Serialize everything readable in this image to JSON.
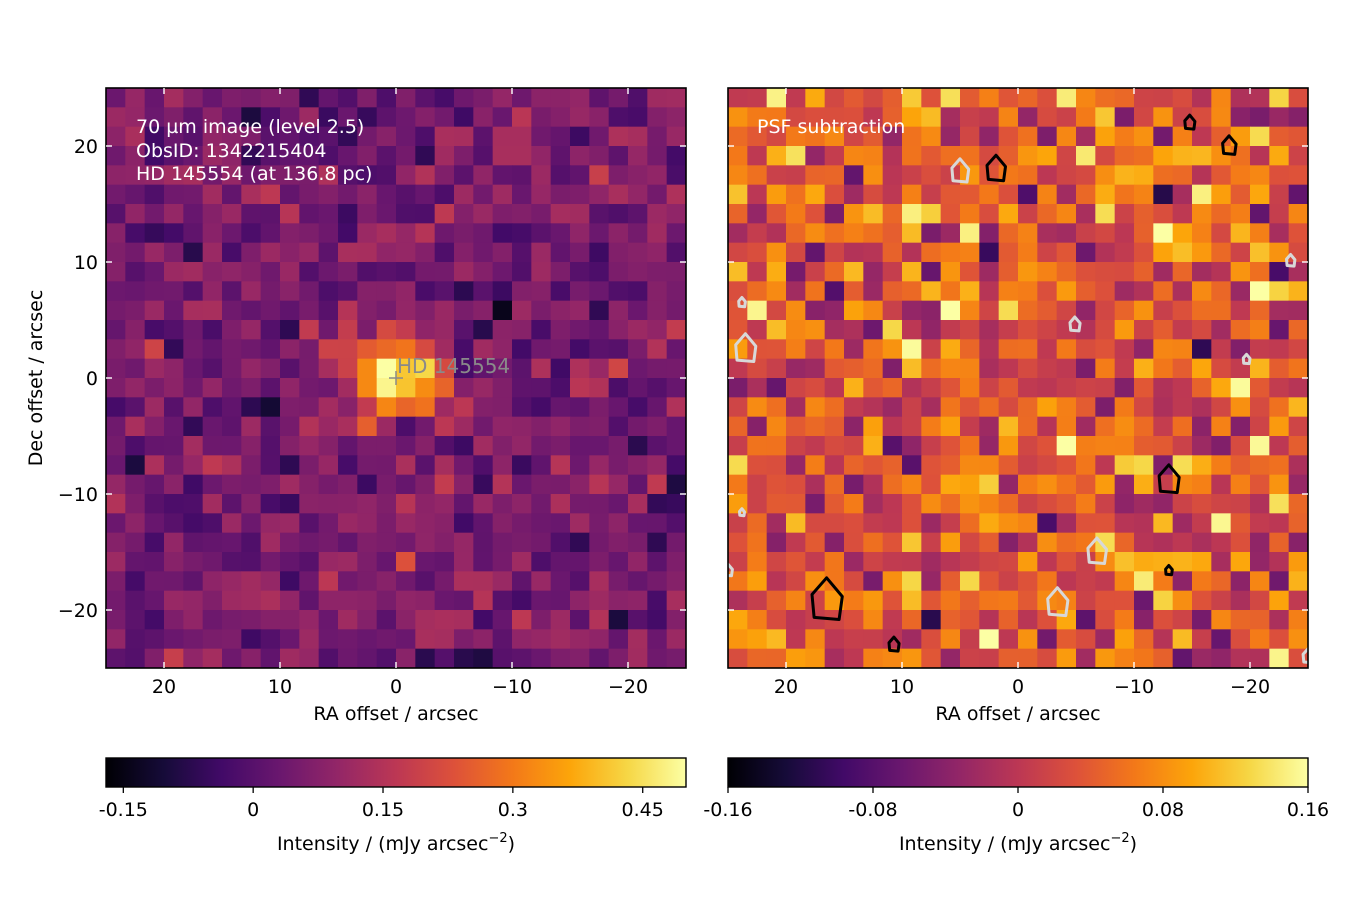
{
  "colors": {
    "colormap": "inferno",
    "overlay_text": "#ffffff",
    "target_label": "#8a8a8a",
    "contour_positive": "#000000",
    "contour_negative": "#d8d8d8"
  },
  "chart_data": [
    {
      "type": "heatmap",
      "panel": "left",
      "annotation_lines": [
        "70 µm image (level 2.5)",
        "ObsID: 1342215404",
        "HD 145554 (at 136.8 pc)"
      ],
      "marker_label": "HD 145554",
      "marker": {
        "ra": 0,
        "dec": 0
      },
      "xlabel": "RA offset / arcsec",
      "ylabel": "Dec offset / arcsec",
      "xlim": [
        25,
        -25
      ],
      "ylim": [
        -25,
        25
      ],
      "xticks": [
        20,
        10,
        0,
        -10,
        -20
      ],
      "xtick_labels": [
        "20",
        "10",
        "0",
        "−10",
        "−20"
      ],
      "yticks": [
        20,
        10,
        0,
        -10,
        -20
      ],
      "ytick_labels": [
        "20",
        "10",
        "0",
        "−10",
        "−20"
      ],
      "grid": [
        30,
        30
      ],
      "value_range": [
        -0.17,
        0.5
      ],
      "peak": {
        "ra": 0,
        "dec": 0,
        "value": 0.5
      },
      "colorbar": {
        "label_main": "Intensity / (mJy arcsec",
        "label_sup": "−2",
        "label_tail": ")",
        "ticks": [
          -0.15,
          0,
          0.15,
          0.3,
          0.45
        ],
        "tick_labels": [
          "-0.15",
          "0",
          "0.15",
          "0.3",
          "0.45"
        ],
        "range": [
          -0.17,
          0.5
        ]
      }
    },
    {
      "type": "heatmap",
      "panel": "right",
      "annotation_lines": [
        "PSF subtraction"
      ],
      "xlabel": "RA offset / arcsec",
      "ylabel": "",
      "xlim": [
        25,
        -25
      ],
      "ylim": [
        -25,
        25
      ],
      "xticks": [
        20,
        10,
        0,
        -10,
        -20
      ],
      "xtick_labels": [
        "20",
        "10",
        "0",
        "−10",
        "−20"
      ],
      "yticks": [
        20,
        10,
        0,
        -10,
        -20
      ],
      "grid": [
        30,
        30
      ],
      "value_range": [
        -0.16,
        0.16
      ],
      "contours": {
        "positive": [
          {
            "ra": 16.5,
            "dec": -19.2,
            "size": 1.8
          },
          {
            "ra": 1.9,
            "dec": 18.0,
            "size": 1.1
          },
          {
            "ra": -13.0,
            "dec": -8.8,
            "size": 1.2
          },
          {
            "ra": -18.2,
            "dec": 20.0,
            "size": 0.8
          },
          {
            "ra": -14.8,
            "dec": 22.0,
            "size": 0.6
          },
          {
            "ra": 10.7,
            "dec": -23.0,
            "size": 0.6
          },
          {
            "ra": -13.0,
            "dec": -16.6,
            "size": 0.4
          }
        ],
        "negative": [
          {
            "ra": 5.0,
            "dec": 17.8,
            "size": 1.0
          },
          {
            "ra": -6.8,
            "dec": -15.0,
            "size": 1.1
          },
          {
            "ra": 23.5,
            "dec": 2.5,
            "size": 1.2
          },
          {
            "ra": -3.4,
            "dec": -19.4,
            "size": 1.2
          },
          {
            "ra": -4.9,
            "dec": 4.6,
            "size": 0.6
          },
          {
            "ra": -23.5,
            "dec": 10.1,
            "size": 0.5
          },
          {
            "ra": 23.8,
            "dec": 6.5,
            "size": 0.4
          },
          {
            "ra": -19.7,
            "dec": 1.6,
            "size": 0.4
          },
          {
            "ra": 23.8,
            "dec": -11.6,
            "size": 0.3
          },
          {
            "ra": -25.0,
            "dec": -24.0,
            "size": 0.6
          },
          {
            "ra": 25.0,
            "dec": -16.6,
            "size": 0.5
          }
        ]
      },
      "colorbar": {
        "label_main": "Intensity / (mJy arcsec",
        "label_sup": "−2",
        "label_tail": ")",
        "ticks": [
          -0.16,
          -0.08,
          0,
          0.08,
          0.16
        ],
        "tick_labels": [
          "-0.16",
          "-0.08",
          "0",
          "0.08",
          "0.16"
        ],
        "range": [
          -0.16,
          0.16
        ]
      }
    }
  ]
}
